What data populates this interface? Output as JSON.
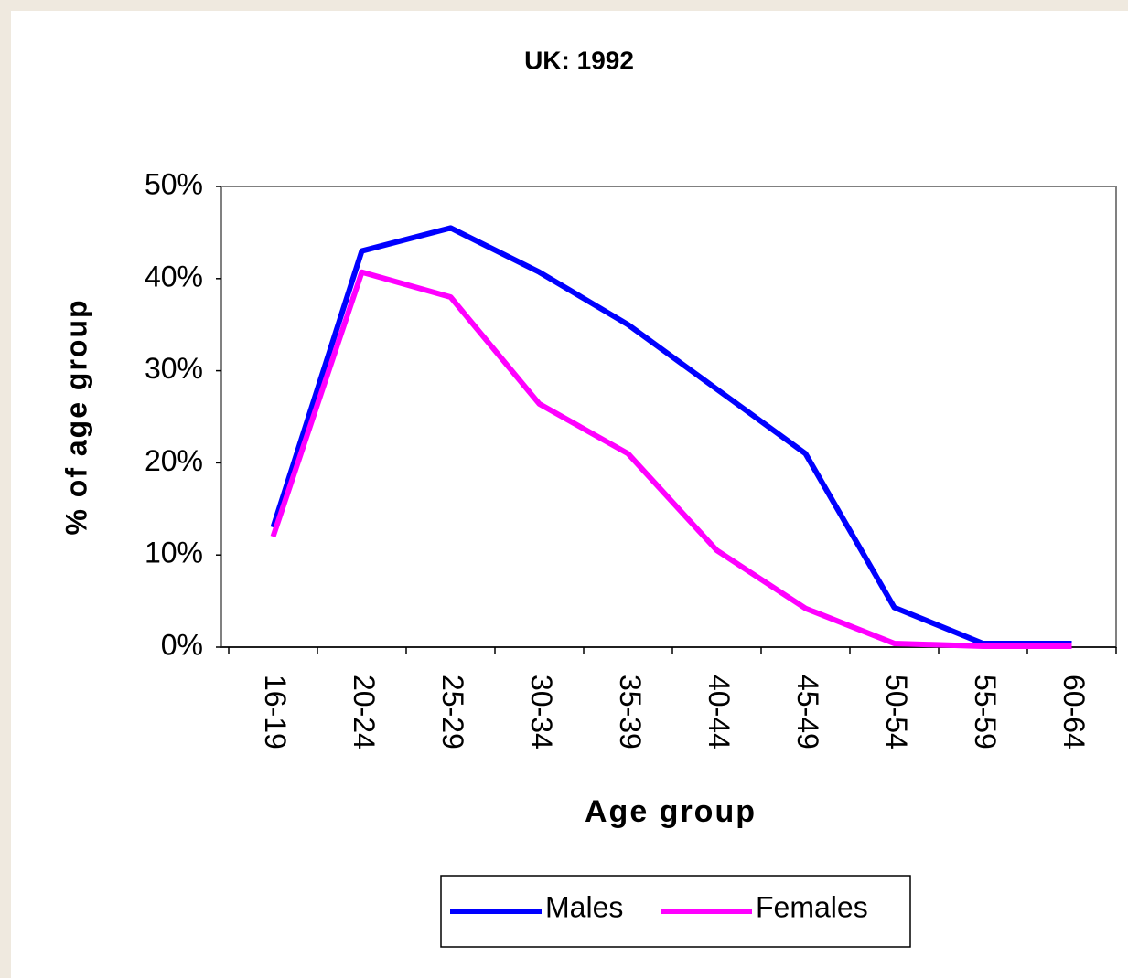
{
  "chart_data": {
    "type": "line",
    "title": "UK: 1992",
    "xlabel": "Age group",
    "ylabel": "% of age group",
    "categories": [
      "16-19",
      "20-24",
      "25-29",
      "30-34",
      "35-39",
      "40-44",
      "45-49",
      "50-54",
      "55-59",
      "60-64"
    ],
    "series": [
      {
        "name": "Males",
        "color": "#0000ff",
        "values": [
          13,
          43,
          45.5,
          40.7,
          35,
          28,
          21,
          4.3,
          0.4,
          0.4
        ]
      },
      {
        "name": "Females",
        "color": "#ff00ff",
        "values": [
          12,
          40.7,
          38,
          26.4,
          21,
          10.5,
          4.2,
          0.4,
          0.1,
          0.1
        ]
      }
    ],
    "ylim": [
      0,
      50
    ],
    "yticks": [
      {
        "value": 0,
        "label": "0%"
      },
      {
        "value": 10,
        "label": "10%"
      },
      {
        "value": 20,
        "label": "20%"
      },
      {
        "value": 30,
        "label": "30%"
      },
      {
        "value": 40,
        "label": "40%"
      },
      {
        "value": 50,
        "label": "50%"
      }
    ],
    "legend": "bottom"
  }
}
